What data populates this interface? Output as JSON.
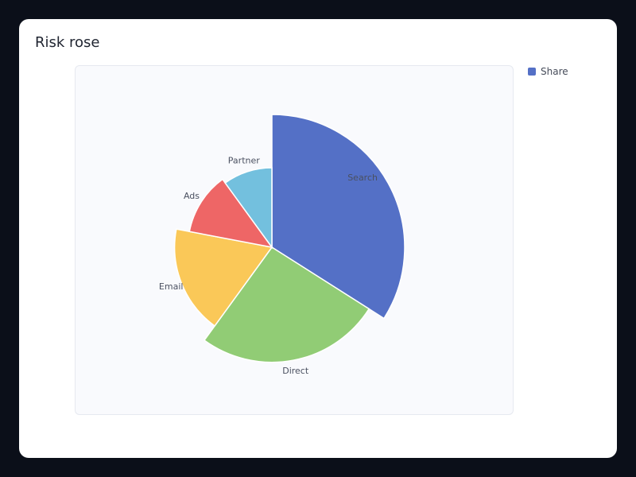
{
  "card": {
    "title": "Risk rose"
  },
  "legend": {
    "label": "Share",
    "color": "#5470c6"
  },
  "chart_data": {
    "type": "pie",
    "subtype": "rose",
    "title": "Risk rose",
    "legend_placement": "top-right",
    "series": [
      {
        "name": "Share",
        "categories": [
          "Search",
          "Direct",
          "Email",
          "Ads",
          "Partner"
        ],
        "values": [
          34,
          26,
          18,
          12,
          10
        ],
        "colors": [
          "#5470c6",
          "#91cc75",
          "#fac858",
          "#ee6666",
          "#73c0de"
        ]
      }
    ]
  }
}
